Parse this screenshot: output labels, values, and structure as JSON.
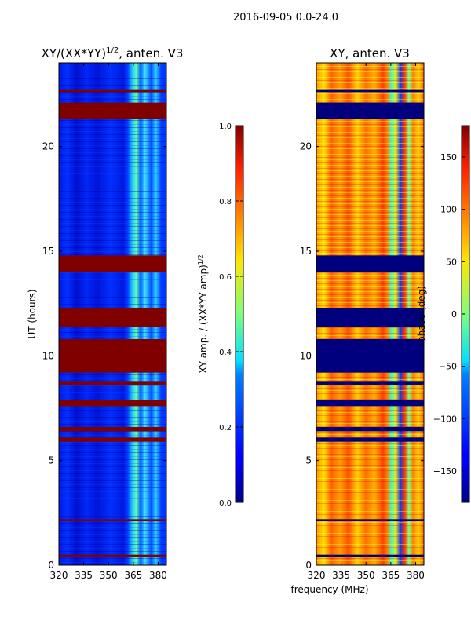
{
  "suptitle": "2016-09-05 0.0-24.0",
  "colors": {
    "nan_band": "#800000",
    "nan_band_right": "#00007f",
    "axis": "#000000"
  },
  "chart_data": [
    {
      "type": "heatmap",
      "title_main": "XY/(XX*YY)",
      "title_sup": "1/2",
      "title_rest": ", anten. V3",
      "ylabel": "UT (hours)",
      "xlabel": "",
      "xlim": [
        320,
        385
      ],
      "ylim": [
        0,
        24
      ],
      "xticks": [
        320,
        335,
        350,
        365,
        380
      ],
      "yticks": [
        0,
        5,
        10,
        15,
        20
      ],
      "masked_bands": [
        [
          0.4,
          0.5
        ],
        [
          2.1,
          2.2
        ],
        [
          5.9,
          6.1
        ],
        [
          6.4,
          6.6
        ],
        [
          7.6,
          7.9
        ],
        [
          8.6,
          8.8
        ],
        [
          9.2,
          10.8
        ],
        [
          11.4,
          12.3
        ],
        [
          14.0,
          14.8
        ],
        [
          21.3,
          22.1
        ],
        [
          22.6,
          22.7
        ]
      ],
      "colorbar": {
        "label_main": "XY amp. / (XX*YY amp)",
        "label_sup": "1/2",
        "range": [
          0.0,
          1.0
        ],
        "ticks": [
          "0.0",
          "0.2",
          "0.4",
          "0.6",
          "0.8",
          "1.0"
        ]
      }
    },
    {
      "type": "heatmap",
      "title_main": "XY, anten. V3",
      "xlabel": "frequency (MHz)",
      "xlim": [
        320,
        385
      ],
      "ylim": [
        0,
        24
      ],
      "xticks": [
        320,
        335,
        350,
        365,
        380
      ],
      "yticks": [
        0,
        5,
        10,
        15,
        20
      ],
      "masked_bands": [
        [
          0.4,
          0.5
        ],
        [
          2.1,
          2.2
        ],
        [
          5.9,
          6.1
        ],
        [
          6.4,
          6.6
        ],
        [
          7.6,
          7.9
        ],
        [
          8.6,
          8.8
        ],
        [
          9.2,
          10.8
        ],
        [
          11.4,
          12.3
        ],
        [
          14.0,
          14.8
        ],
        [
          21.3,
          22.1
        ],
        [
          22.6,
          22.7
        ]
      ],
      "colorbar": {
        "label_main": "phase (deg)",
        "range": [
          -180,
          180
        ],
        "ticks": [
          "150",
          "100",
          "50",
          "0",
          "−50",
          "−100",
          "−150"
        ],
        "tick_values": [
          150,
          100,
          50,
          0,
          -50,
          -100,
          -150
        ]
      }
    }
  ]
}
